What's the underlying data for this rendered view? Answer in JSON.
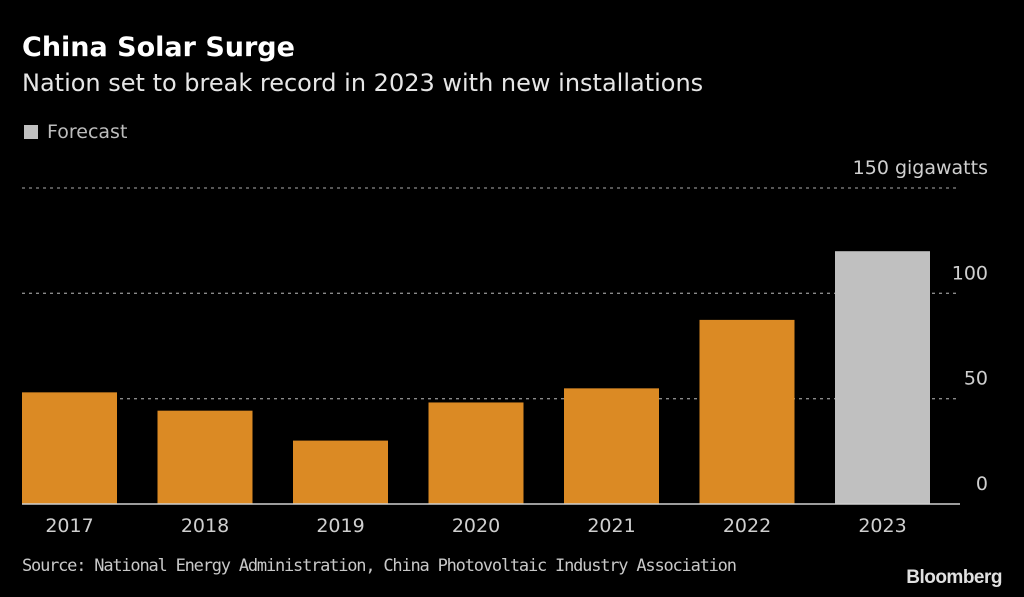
{
  "chart_data": {
    "type": "bar",
    "title": "China Solar Surge",
    "subtitle": "Nation set to break record in 2023 with new installations",
    "legend": [
      {
        "label": "Forecast",
        "color": "#c0c0c0"
      }
    ],
    "legend_placement": "top-left",
    "categories": [
      "2017",
      "2018",
      "2019",
      "2020",
      "2021",
      "2022",
      "2023"
    ],
    "values": [
      53,
      44.3,
      30.1,
      48.2,
      54.9,
      87.4,
      120
    ],
    "forecast": [
      false,
      false,
      false,
      false,
      false,
      false,
      true
    ],
    "colors": {
      "actual": "#db8a24",
      "forecast": "#c0c0c0",
      "grid": "#8a8a8a",
      "baseline": "#cfcfcf",
      "tick": "#cfcfcf"
    },
    "yticks": [
      0,
      50,
      100,
      150
    ],
    "ytick_labels": [
      "0",
      "50",
      "100",
      "150 gigawatts"
    ],
    "ylim": [
      0,
      150
    ],
    "ylabel": "gigawatts",
    "xlabel": "",
    "grid": true,
    "yaxis_side": "right",
    "source": "Source: National Energy Administration, China Photovoltaic Industry Association",
    "brand": "Bloomberg"
  }
}
